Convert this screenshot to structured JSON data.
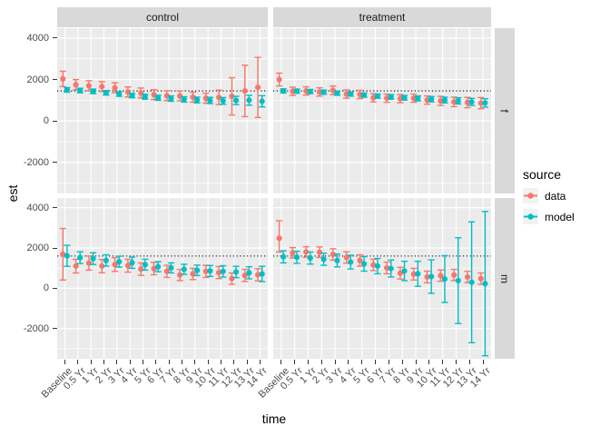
{
  "figure": {
    "bg": "#FFFFFF",
    "panel_bg": "#EBEBEB",
    "strip_bg": "#D9D9D9",
    "grid_color": "#FFFFFF",
    "axis_text_color": "#4D4D4D",
    "ref_line_color": "#000000"
  },
  "chart_data": {
    "type": "pointrange",
    "x_title": "time",
    "y_title": "est",
    "x_categories": [
      "Baseline",
      "0.5 Yr",
      "1 Yr",
      "2 Yr",
      "3 Yr",
      "4 Yr",
      "5 Yr",
      "6 Yr",
      "7 Yr",
      "8 Yr",
      "9 Yr",
      "10 Yr",
      "11 Yr",
      "12 Yr",
      "13 Yr",
      "14 Yr"
    ],
    "y_ticks": [
      4000,
      2000,
      0,
      -2000
    ],
    "y_minor": [
      3000,
      1000,
      -1000,
      -3000
    ],
    "y_domain": [
      -3500,
      4480
    ],
    "facet_cols": [
      "control",
      "treatment"
    ],
    "facet_rows": [
      "f",
      "m"
    ],
    "reference_line": {
      "f": 1450,
      "m": 1600
    },
    "legend": {
      "title": "source",
      "items": [
        {
          "label": "data",
          "color": "#F8766D"
        },
        {
          "label": "model",
          "color": "#00BFC4"
        }
      ]
    },
    "panels": [
      {
        "col": "control",
        "row": "f",
        "series": [
          {
            "name": "data",
            "est": [
              2030,
              1750,
              1700,
              1660,
              1600,
              1400,
              1350,
              1270,
              1220,
              1210,
              1150,
              1100,
              1140,
              1190,
              1450,
              1620
            ],
            "lo": [
              1660,
              1500,
              1460,
              1420,
              1360,
              1160,
              1110,
              1030,
              980,
              970,
              910,
              860,
              790,
              290,
              210,
              170
            ],
            "hi": [
              2400,
              2000,
              1940,
              1900,
              1840,
              1640,
              1590,
              1510,
              1460,
              1450,
              1390,
              1340,
              1490,
              2090,
              2690,
              3070
            ]
          },
          {
            "name": "model",
            "est": [
              1500,
              1470,
              1430,
              1360,
              1300,
              1230,
              1170,
              1120,
              1080,
              1040,
              1010,
              990,
              970,
              990,
              1000,
              950
            ],
            "lo": [
              1390,
              1360,
              1320,
              1250,
              1190,
              1120,
              1050,
              1000,
              950,
              910,
              870,
              840,
              810,
              790,
              760,
              680
            ],
            "hi": [
              1610,
              1580,
              1540,
              1470,
              1410,
              1340,
              1290,
              1240,
              1210,
              1170,
              1150,
              1140,
              1130,
              1190,
              1240,
              1220
            ]
          }
        ]
      },
      {
        "col": "treatment",
        "row": "f",
        "series": [
          {
            "name": "data",
            "est": [
              2000,
              1430,
              1450,
              1400,
              1480,
              1300,
              1280,
              1120,
              1100,
              1080,
              1100,
              1010,
              970,
              920,
              890,
              860
            ],
            "lo": [
              1690,
              1230,
              1250,
              1200,
              1270,
              1100,
              1080,
              920,
              900,
              880,
              900,
              810,
              750,
              690,
              640,
              590
            ],
            "hi": [
              2310,
              1630,
              1650,
              1600,
              1690,
              1500,
              1480,
              1320,
              1300,
              1280,
              1300,
              1210,
              1190,
              1150,
              1140,
              1130
            ]
          },
          {
            "name": "model",
            "est": [
              1450,
              1440,
              1420,
              1390,
              1340,
              1300,
              1250,
              1200,
              1160,
              1120,
              1090,
              1050,
              1010,
              970,
              920,
              870
            ],
            "lo": [
              1350,
              1340,
              1320,
              1290,
              1240,
              1200,
              1150,
              1100,
              1050,
              1010,
              970,
              920,
              870,
              820,
              750,
              670
            ],
            "hi": [
              1550,
              1540,
              1520,
              1490,
              1440,
              1400,
              1350,
              1300,
              1270,
              1230,
              1210,
              1180,
              1150,
              1120,
              1090,
              1070
            ]
          }
        ]
      },
      {
        "col": "control",
        "row": "m",
        "series": [
          {
            "name": "data",
            "est": [
              1690,
              1100,
              1250,
              1100,
              1180,
              1120,
              950,
              980,
              840,
              660,
              710,
              840,
              780,
              480,
              640,
              670
            ],
            "lo": [
              410,
              760,
              900,
              770,
              840,
              800,
              640,
              670,
              540,
              380,
              430,
              540,
              480,
              200,
              340,
              370
            ],
            "hi": [
              2970,
              1440,
              1600,
              1430,
              1520,
              1440,
              1260,
              1290,
              1140,
              940,
              990,
              1140,
              1080,
              760,
              940,
              970
            ]
          },
          {
            "name": "model",
            "est": [
              1610,
              1520,
              1470,
              1380,
              1320,
              1270,
              1170,
              1070,
              1010,
              940,
              890,
              860,
              840,
              810,
              770,
              710
            ],
            "lo": [
              1090,
              1230,
              1180,
              1100,
              1050,
              990,
              900,
              820,
              760,
              690,
              630,
              590,
              560,
              530,
              470,
              330
            ],
            "hi": [
              2130,
              1810,
              1760,
              1660,
              1590,
              1550,
              1440,
              1320,
              1260,
              1190,
              1150,
              1130,
              1120,
              1090,
              1070,
              1090
            ]
          }
        ]
      },
      {
        "col": "treatment",
        "row": "m",
        "series": [
          {
            "name": "data",
            "est": [
              2480,
              1760,
              1800,
              1790,
              1680,
              1530,
              1380,
              1160,
              1010,
              750,
              700,
              560,
              630,
              660,
              560,
              480
            ],
            "lo": [
              1800,
              1500,
              1540,
              1530,
              1400,
              1250,
              1100,
              880,
              720,
              460,
              410,
              270,
              350,
              380,
              280,
              200
            ],
            "hi": [
              3350,
              2020,
              2060,
              2050,
              1960,
              1810,
              1660,
              1440,
              1300,
              1040,
              990,
              850,
              910,
              940,
              840,
              760
            ]
          },
          {
            "name": "model",
            "est": [
              1560,
              1540,
              1500,
              1440,
              1380,
              1300,
              1210,
              1100,
              980,
              860,
              720,
              580,
              460,
              380,
              300,
              230
            ],
            "lo": [
              1260,
              1240,
              1200,
              1140,
              1060,
              960,
              850,
              720,
              560,
              380,
              100,
              -250,
              -700,
              -1750,
              -2700,
              -3350
            ],
            "hi": [
              1860,
              1840,
              1800,
              1740,
              1700,
              1640,
              1570,
              1480,
              1400,
              1340,
              1340,
              1410,
              1620,
              2510,
              3300,
              3810
            ]
          }
        ]
      }
    ]
  }
}
